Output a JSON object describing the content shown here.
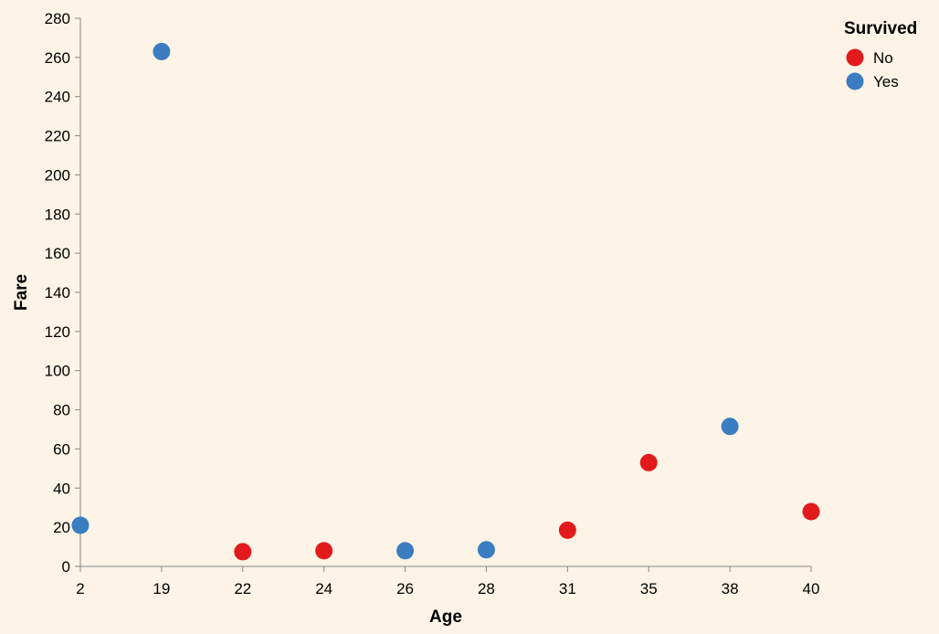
{
  "chart_data": {
    "type": "scatter",
    "xlabel": "Age",
    "ylabel": "Fare",
    "x_scale": "ordinal",
    "x_categories": [
      "2",
      "19",
      "22",
      "24",
      "26",
      "28",
      "31",
      "35",
      "38",
      "40"
    ],
    "ylim": [
      0,
      280
    ],
    "y_ticks": [
      0,
      20,
      40,
      60,
      80,
      100,
      120,
      140,
      160,
      180,
      200,
      220,
      240,
      260,
      280
    ],
    "grid": false,
    "legend": {
      "title": "Survived",
      "placement": "top-right",
      "entries": [
        {
          "label": "No",
          "color": "#e31a1c"
        },
        {
          "label": "Yes",
          "color": "#3a7dc0"
        }
      ]
    },
    "points": [
      {
        "x": "2",
        "y": 21,
        "survived": "Yes"
      },
      {
        "x": "19",
        "y": 263,
        "survived": "Yes"
      },
      {
        "x": "22",
        "y": 7.5,
        "survived": "No"
      },
      {
        "x": "24",
        "y": 8,
        "survived": "No"
      },
      {
        "x": "26",
        "y": 8,
        "survived": "Yes"
      },
      {
        "x": "28",
        "y": 8.5,
        "survived": "Yes"
      },
      {
        "x": "31",
        "y": 18.5,
        "survived": "No"
      },
      {
        "x": "35",
        "y": 53,
        "survived": "No"
      },
      {
        "x": "38",
        "y": 71.5,
        "survived": "Yes"
      },
      {
        "x": "40",
        "y": 28,
        "survived": "No"
      }
    ]
  }
}
